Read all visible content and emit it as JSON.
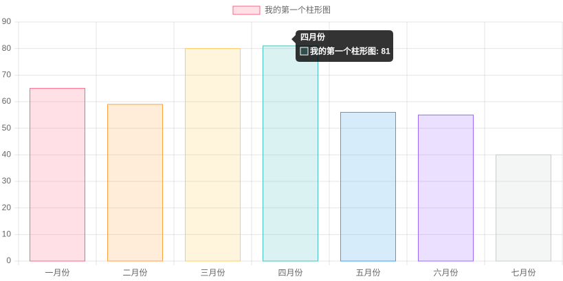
{
  "chart_data": {
    "type": "bar",
    "categories": [
      "一月份",
      "二月份",
      "三月份",
      "四月份",
      "五月份",
      "六月份",
      "七月份"
    ],
    "series": [
      {
        "name": "我的第一个柱形图",
        "values": [
          65,
          59,
          80,
          81,
          56,
          55,
          40
        ],
        "colors": [
          "rgba(255,99,132,0.2)",
          "rgba(255,159,64,0.2)",
          "rgba(255,205,86,0.2)",
          "rgba(75,192,192,0.2)",
          "rgba(54,162,235,0.2)",
          "rgba(153,102,255,0.2)",
          "rgba(201,203,207,0.2)"
        ],
        "border_colors": [
          "rgb(255,99,132)",
          "rgb(255,159,64)",
          "rgb(255,205,86)",
          "rgb(75,192,192)",
          "rgb(54,162,235)",
          "rgb(153,102,255)",
          "rgb(201,203,207)"
        ]
      }
    ],
    "ylim": [
      0,
      90
    ],
    "yticks": [
      0,
      10,
      20,
      30,
      40,
      50,
      60,
      70,
      80,
      90
    ],
    "grid": true,
    "legend": "top",
    "tooltip": {
      "title": "四月份",
      "body": "我的第一个柱形图: 81"
    }
  }
}
